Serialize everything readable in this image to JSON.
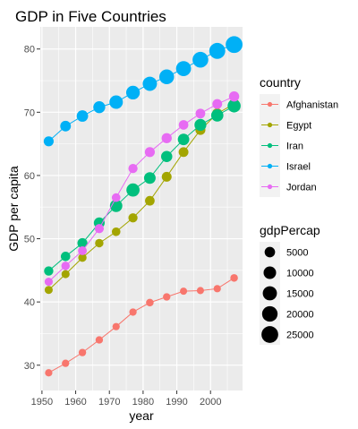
{
  "chart_data": {
    "type": "line",
    "title": "GDP in Five Countries",
    "xlabel": "year",
    "ylabel": "GDP per capita",
    "xlim": [
      1949.5,
      2009.5
    ],
    "ylim": [
      26.0,
      83.5
    ],
    "xticks": [
      1950,
      1960,
      1970,
      1980,
      1990,
      2000
    ],
    "yticks": [
      30,
      40,
      50,
      60,
      70,
      80
    ],
    "grid": true,
    "legend_position": "right",
    "colour_legend": {
      "title": "country",
      "entries": [
        "Afghanistan",
        "Egypt",
        "Iran",
        "Israel",
        "Jordan"
      ]
    },
    "size_legend": {
      "title": "gdpPercap",
      "values": [
        5000,
        10000,
        15000,
        20000,
        25000
      ]
    },
    "years": [
      1952,
      1957,
      1962,
      1967,
      1972,
      1977,
      1982,
      1987,
      1992,
      1997,
      2002,
      2007
    ],
    "series": [
      {
        "name": "Afghanistan",
        "color": "#F8766D",
        "values": [
          28.8,
          30.3,
          32.0,
          34.0,
          36.1,
          38.4,
          39.9,
          40.8,
          41.7,
          41.8,
          42.1,
          43.8
        ],
        "gdpPercap": [
          779,
          821,
          853,
          836,
          740,
          786,
          978,
          852,
          649,
          635,
          727,
          975
        ]
      },
      {
        "name": "Egypt",
        "color": "#A3A500",
        "values": [
          41.9,
          44.4,
          47.0,
          49.3,
          51.1,
          53.3,
          56.0,
          59.8,
          63.7,
          67.2,
          69.8,
          71.3
        ],
        "gdpPercap": [
          1419,
          1459,
          1693,
          1815,
          2024,
          2785,
          3504,
          3885,
          3795,
          4173,
          4755,
          5581
        ]
      },
      {
        "name": "Iran",
        "color": "#00BF7D",
        "values": [
          44.9,
          47.2,
          49.3,
          52.5,
          55.2,
          57.7,
          59.6,
          63.0,
          65.7,
          68.0,
          69.5,
          71.0
        ],
        "gdpPercap": [
          3035,
          3290,
          4187,
          5906,
          9613,
          11889,
          7608,
          6642,
          7235,
          8263,
          9241,
          11606
        ]
      },
      {
        "name": "Israel",
        "color": "#00B0F6",
        "values": [
          65.4,
          67.8,
          69.4,
          70.8,
          71.6,
          73.1,
          74.5,
          75.6,
          76.9,
          78.3,
          79.7,
          80.7
        ],
        "gdpPercap": [
          4087,
          5386,
          7106,
          8394,
          12787,
          13307,
          15367,
          17123,
          18051,
          20897,
          21906,
          25523
        ]
      },
      {
        "name": "Jordan",
        "color": "#E76BF3",
        "values": [
          43.2,
          45.7,
          48.1,
          51.6,
          56.5,
          61.1,
          63.7,
          65.9,
          68.0,
          69.8,
          71.3,
          72.5
        ],
        "gdpPercap": [
          1547,
          1886,
          2348,
          2742,
          2110,
          2853,
          4161,
          4448,
          3431,
          3645,
          3845,
          4519
        ]
      }
    ]
  }
}
